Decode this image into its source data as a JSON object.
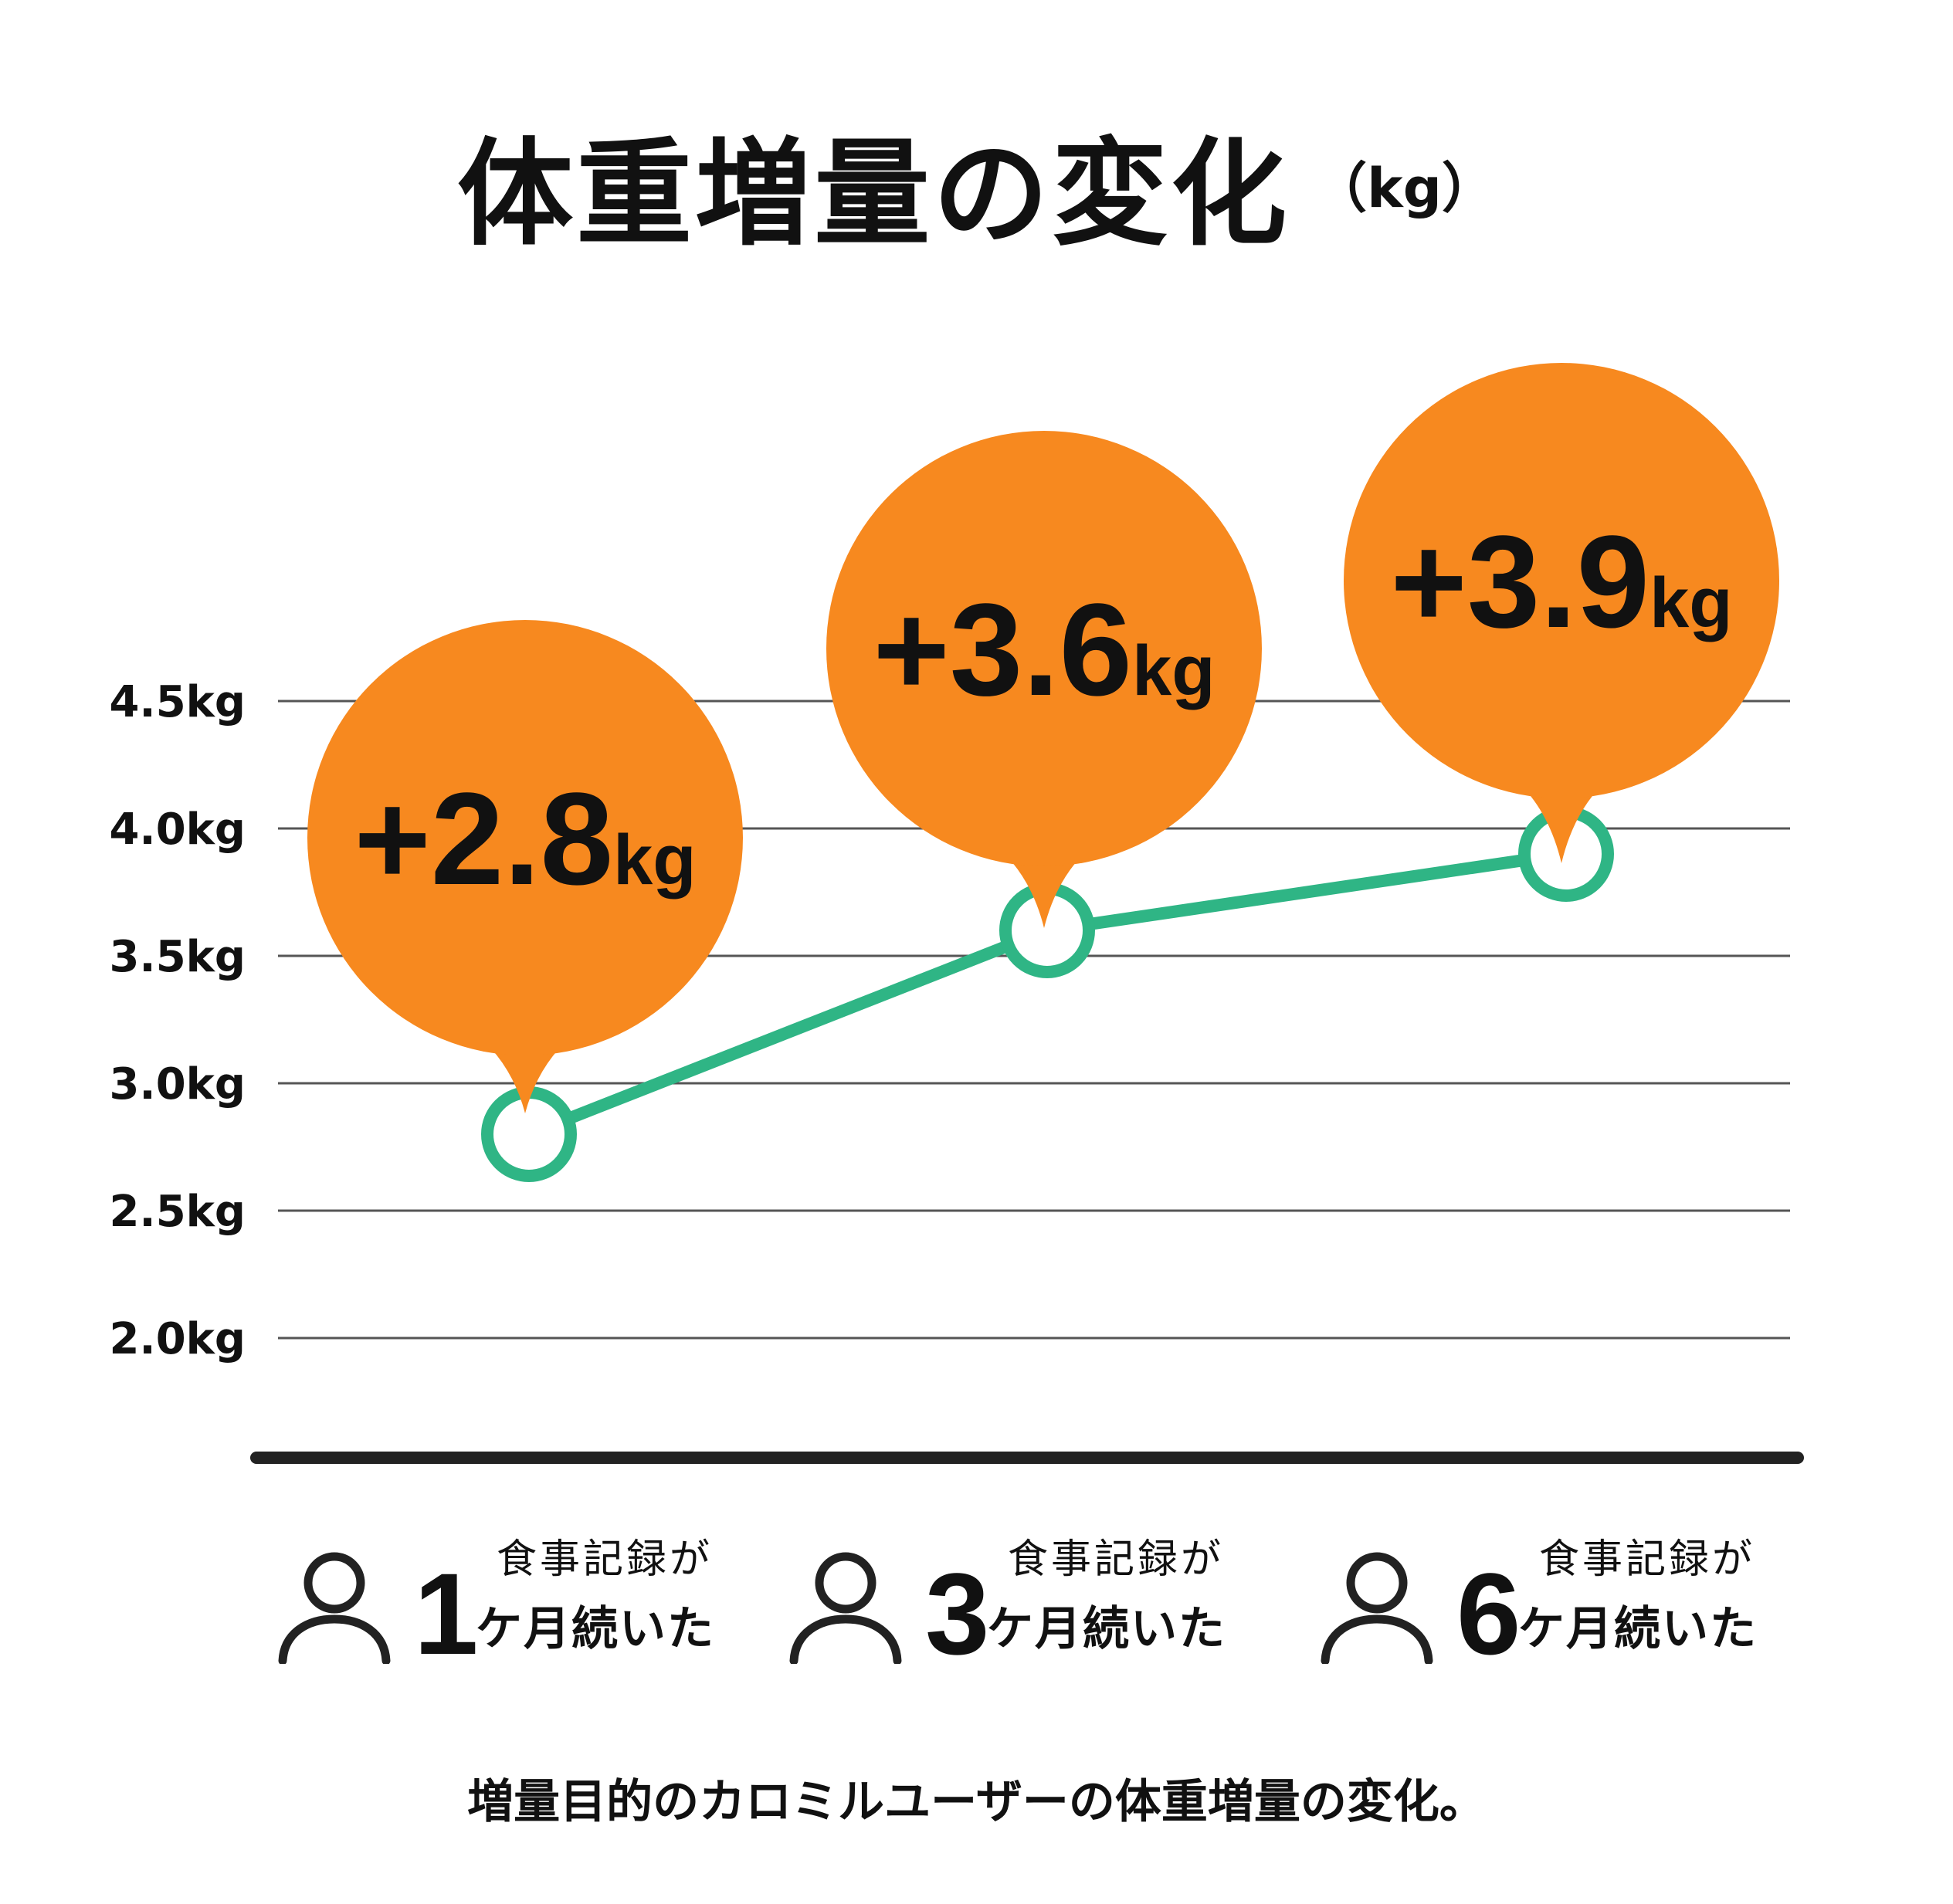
{
  "title": "体重増量の変化",
  "title_unit": "（kg）",
  "caption": "増量目的のカロミルユーザーの体重増量の変化。",
  "colors": {
    "line": "#2fb585",
    "bubble": "#f7891f",
    "grid": "#555555",
    "baseline": "#222222"
  },
  "categories": [
    {
      "icon": "person-icon",
      "number": "1",
      "top": "食事記録が",
      "bottom": "ケ月続いた"
    },
    {
      "icon": "person-icon",
      "number": "3",
      "top": "食事記録が",
      "bottom": "ケ月続いた"
    },
    {
      "icon": "person-icon",
      "number": "6",
      "top": "食事記録が",
      "bottom": "ケ月続いた"
    }
  ],
  "chart_data": {
    "type": "line",
    "categories": [
      "1ケ月",
      "3ケ月",
      "6ケ月"
    ],
    "series": [
      {
        "values": [
          2.8,
          3.6,
          3.9
        ]
      }
    ],
    "data_labels": [
      {
        "num": "+2.8",
        "unit": "kg"
      },
      {
        "num": "+3.6",
        "unit": "kg"
      },
      {
        "num": "+3.9",
        "unit": "kg"
      }
    ],
    "yticks": [
      "4.5kg",
      "4.0kg",
      "3.5kg",
      "3.0kg",
      "2.5kg",
      "2.0kg"
    ],
    "ytick_values": [
      4.5,
      4.0,
      3.5,
      3.0,
      2.5,
      2.0
    ],
    "grid": true
  }
}
